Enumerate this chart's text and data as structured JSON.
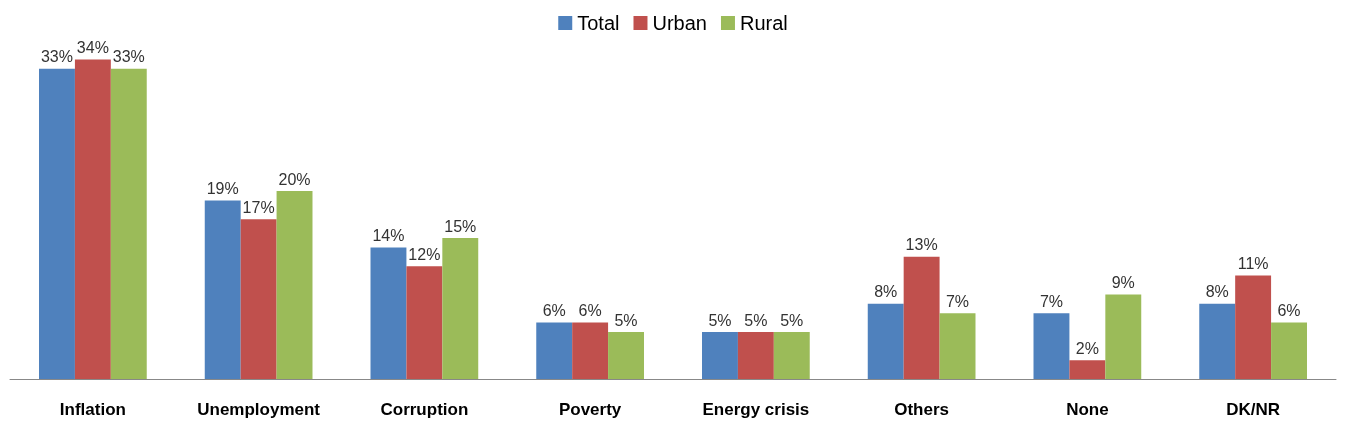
{
  "chart_data": {
    "type": "bar",
    "categories": [
      "Inflation",
      "Unemployment",
      "Corruption",
      "Poverty",
      "Energy crisis",
      "Others",
      "None",
      "DK/NR"
    ],
    "series": [
      {
        "name": "Total",
        "color": "#4f81bd",
        "values": [
          33,
          19,
          14,
          6,
          5,
          8,
          7,
          8
        ],
        "value_labels": [
          "33%",
          "19%",
          "14%",
          "6%",
          "5%",
          "8%",
          "7%",
          "8%"
        ]
      },
      {
        "name": "Urban",
        "color": "#c0504d",
        "values": [
          34,
          17,
          12,
          6,
          5,
          13,
          2,
          11
        ],
        "value_labels": [
          "34%",
          "17%",
          "12%",
          "6%",
          "5%",
          "13%",
          "2%",
          "11%"
        ]
      },
      {
        "name": "Rural",
        "color": "#9bbb59",
        "values": [
          33,
          20,
          15,
          5,
          5,
          7,
          9,
          6
        ],
        "value_labels": [
          "33%",
          "20%",
          "15%",
          "5%",
          "5%",
          "7%",
          "9%",
          "6%"
        ]
      }
    ],
    "legend": "top"
  }
}
